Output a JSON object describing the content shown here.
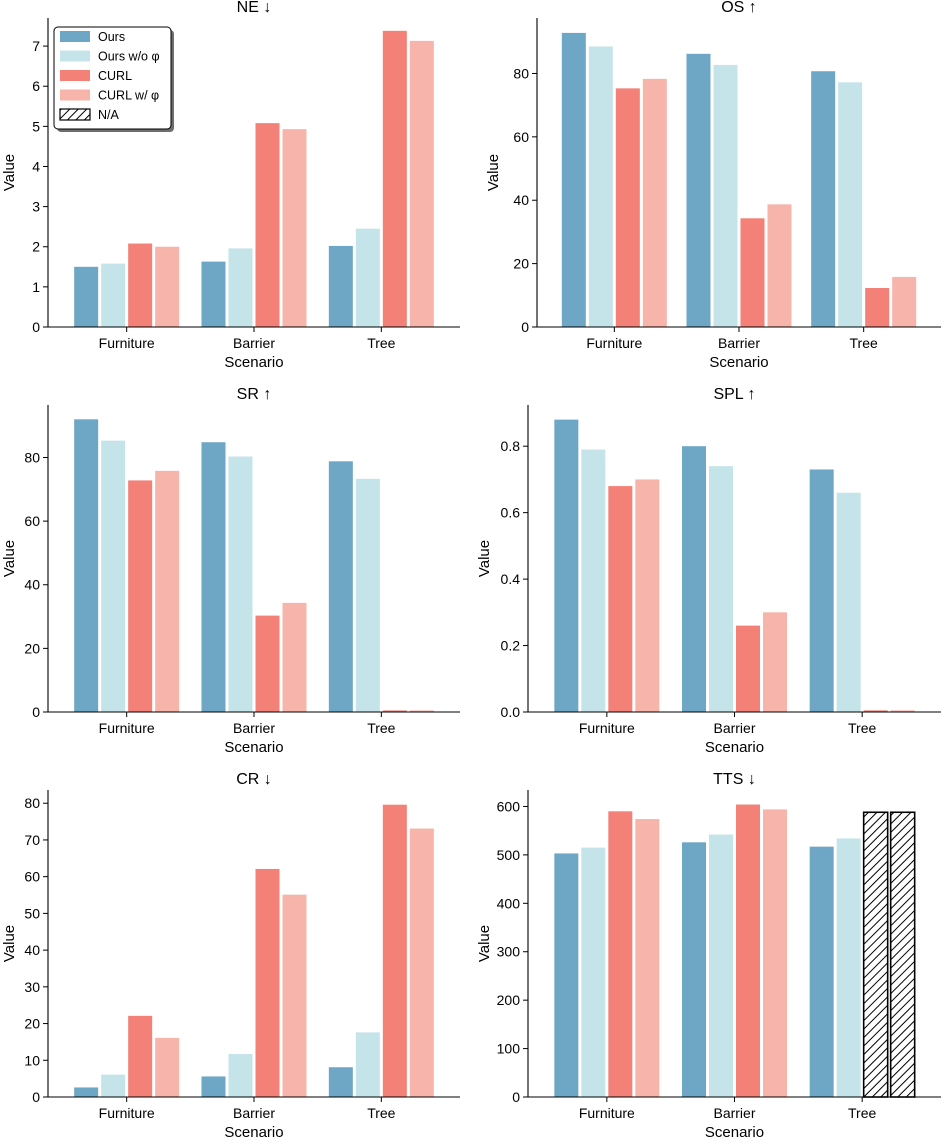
{
  "chart_data": {
    "type": "bar",
    "layout": "3x2 grid",
    "categories": [
      "Furniture",
      "Barrier",
      "Tree"
    ],
    "series_names": [
      "Ours",
      "Ours w/o φ",
      "CURL",
      "CURL w/ φ"
    ],
    "colors": {
      "Ours": "#6ea6c5",
      "Ours w/o φ": "#c5e4ea",
      "CURL": "#f38177",
      "CURL w/ φ": "#f6b4ab"
    },
    "legend": {
      "placement": "top-left",
      "panel": "NE",
      "entries": [
        "Ours",
        "Ours w/o φ",
        "CURL",
        "CURL w/ φ",
        "N/A"
      ]
    },
    "panels": [
      {
        "id": "NE",
        "title": "NE ↓",
        "xlabel": "Scenario",
        "ylabel": "Value",
        "ylim": [
          0,
          7.7
        ],
        "yticks": [
          0,
          1,
          2,
          3,
          4,
          5,
          6,
          7
        ],
        "tick_decimals": 0,
        "series": [
          {
            "name": "Ours",
            "values": [
              1.5,
              1.63,
              2.02
            ]
          },
          {
            "name": "Ours w/o φ",
            "values": [
              1.58,
              1.96,
              2.45
            ]
          },
          {
            "name": "CURL",
            "values": [
              2.08,
              5.08,
              7.38
            ]
          },
          {
            "name": "CURL w/ φ",
            "values": [
              2.0,
              4.93,
              7.13
            ]
          }
        ]
      },
      {
        "id": "OS",
        "title": "OS ↑",
        "xlabel": "Scenario",
        "ylabel": "Value",
        "ylim": [
          0,
          97.5
        ],
        "yticks": [
          0,
          20,
          40,
          60,
          80
        ],
        "tick_decimals": 0,
        "series": [
          {
            "name": "Ours",
            "values": [
              92.8,
              86.2,
              80.7
            ]
          },
          {
            "name": "Ours w/o φ",
            "values": [
              88.5,
              82.7,
              77.2
            ]
          },
          {
            "name": "CURL",
            "values": [
              75.3,
              34.3,
              12.3
            ]
          },
          {
            "name": "CURL w/ φ",
            "values": [
              78.3,
              38.7,
              15.8
            ]
          }
        ]
      },
      {
        "id": "SR",
        "title": "SR ↑",
        "xlabel": "Scenario",
        "ylabel": "Value",
        "ylim": [
          0,
          96.5
        ],
        "yticks": [
          0,
          20,
          40,
          60,
          80
        ],
        "tick_decimals": 0,
        "series": [
          {
            "name": "Ours",
            "values": [
              92.0,
              84.8,
              78.8
            ]
          },
          {
            "name": "Ours w/o φ",
            "values": [
              85.3,
              80.3,
              73.3
            ]
          },
          {
            "name": "CURL",
            "values": [
              72.8,
              30.3,
              0.5
            ]
          },
          {
            "name": "CURL w/ φ",
            "values": [
              75.8,
              34.3,
              0.5
            ]
          }
        ]
      },
      {
        "id": "SPL",
        "title": "SPL ↑",
        "xlabel": "Scenario",
        "ylabel": "Value",
        "ylim": [
          0,
          0.924
        ],
        "yticks": [
          0.0,
          0.2,
          0.4,
          0.6,
          0.8
        ],
        "tick_decimals": 1,
        "series": [
          {
            "name": "Ours",
            "values": [
              0.88,
              0.8,
              0.73
            ]
          },
          {
            "name": "Ours w/o φ",
            "values": [
              0.79,
              0.74,
              0.66
            ]
          },
          {
            "name": "CURL",
            "values": [
              0.68,
              0.26,
              0.005
            ]
          },
          {
            "name": "CURL w/ φ",
            "values": [
              0.7,
              0.3,
              0.005
            ]
          }
        ]
      },
      {
        "id": "CR",
        "title": "CR ↓",
        "xlabel": "Scenario",
        "ylabel": "Value",
        "ylim": [
          0,
          83.6
        ],
        "yticks": [
          0,
          10,
          20,
          30,
          40,
          50,
          60,
          70,
          80
        ],
        "tick_decimals": 0,
        "series": [
          {
            "name": "Ours",
            "values": [
              2.6,
              5.6,
              8.1
            ]
          },
          {
            "name": "Ours w/o φ",
            "values": [
              6.1,
              11.7,
              17.6
            ]
          },
          {
            "name": "CURL",
            "values": [
              22.1,
              62.1,
              79.6
            ]
          },
          {
            "name": "CURL w/ φ",
            "values": [
              16.1,
              55.1,
              73.1
            ]
          }
        ]
      },
      {
        "id": "TTS",
        "title": "TTS ↓",
        "xlabel": "Scenario",
        "ylabel": "Value",
        "ylim": [
          0,
          634
        ],
        "yticks": [
          0,
          100,
          200,
          300,
          400,
          500,
          600
        ],
        "tick_decimals": 0,
        "series": [
          {
            "name": "Ours",
            "values": [
              503,
              526,
              517
            ]
          },
          {
            "name": "Ours w/o φ",
            "values": [
              515,
              542,
              534
            ]
          },
          {
            "name": "CURL",
            "values": [
              590,
              604,
              null
            ]
          },
          {
            "name": "CURL w/ φ",
            "values": [
              574,
              594,
              null
            ]
          }
        ],
        "na_placeholders": [
          {
            "category": "Tree",
            "series": "CURL",
            "value": 588
          },
          {
            "category": "Tree",
            "series": "CURL w/ φ",
            "value": 588
          }
        ]
      }
    ]
  }
}
